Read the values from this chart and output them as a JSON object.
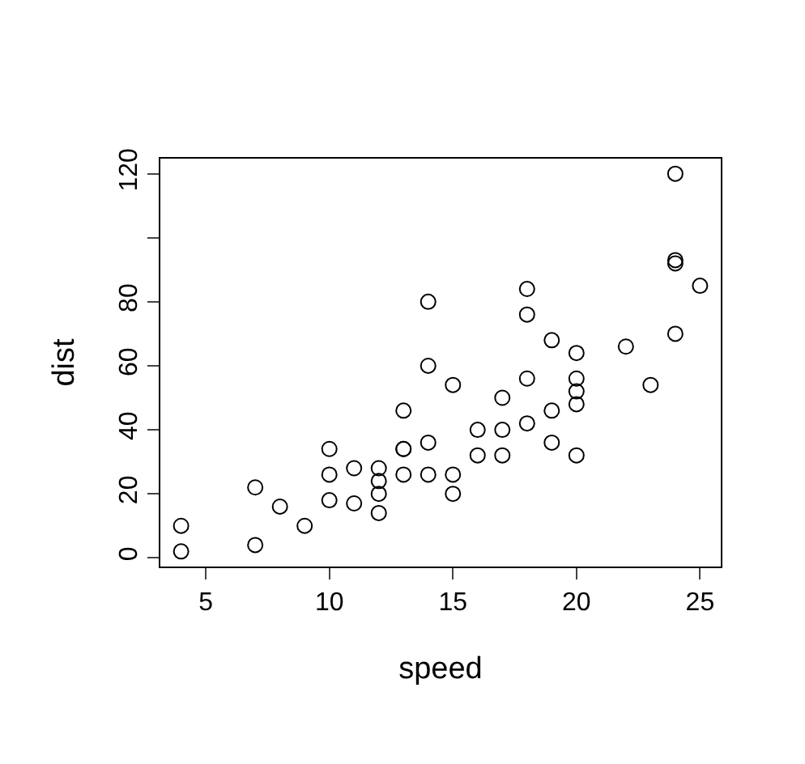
{
  "chart_data": {
    "type": "scatter",
    "xlabel": "speed",
    "ylabel": "dist",
    "x": [
      4,
      4,
      7,
      7,
      8,
      9,
      10,
      10,
      10,
      11,
      11,
      12,
      12,
      12,
      12,
      13,
      13,
      13,
      13,
      14,
      14,
      14,
      14,
      15,
      15,
      15,
      16,
      16,
      17,
      17,
      17,
      18,
      18,
      18,
      18,
      19,
      19,
      19,
      20,
      20,
      20,
      20,
      20,
      22,
      23,
      24,
      24,
      24,
      24,
      25
    ],
    "values": [
      2,
      10,
      4,
      22,
      16,
      10,
      18,
      26,
      34,
      17,
      28,
      14,
      20,
      24,
      28,
      26,
      34,
      34,
      46,
      26,
      36,
      60,
      80,
      20,
      26,
      54,
      32,
      40,
      32,
      40,
      50,
      42,
      56,
      76,
      84,
      36,
      46,
      68,
      32,
      48,
      52,
      56,
      64,
      66,
      54,
      70,
      92,
      93,
      120,
      85
    ],
    "color": "#000000",
    "marker": "circle",
    "xlim": [
      3.16,
      25.84
    ],
    "ylim": [
      -2.72,
      124.72
    ],
    "xticks": [
      5,
      10,
      15,
      20,
      25
    ],
    "yticks": [
      0,
      20,
      40,
      60,
      80,
      {
        "value": 100,
        "label": null
      },
      120
    ],
    "legend": false
  }
}
